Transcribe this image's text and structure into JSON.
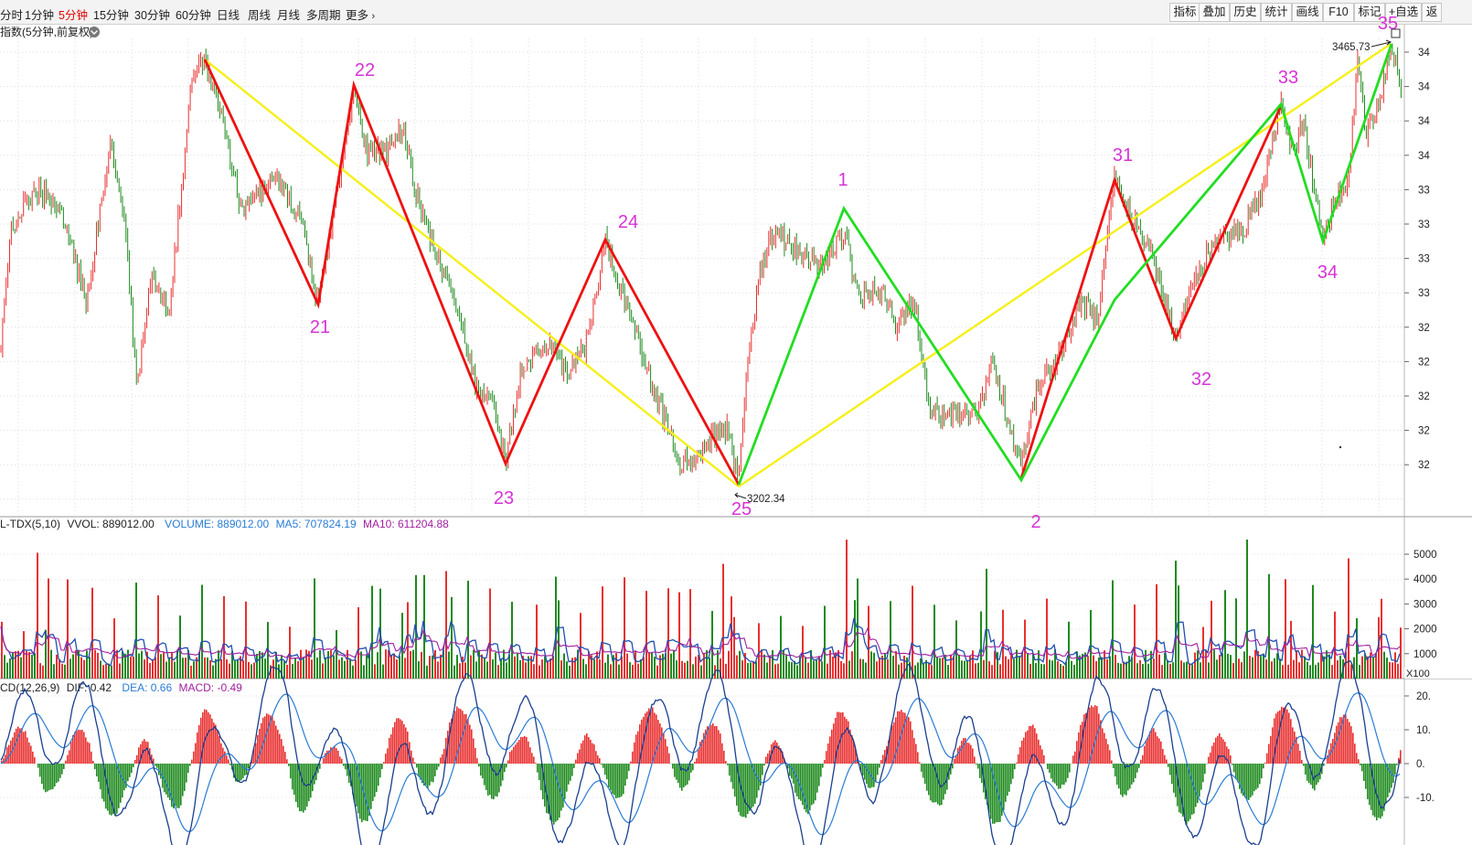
{
  "toolbar": {
    "periods": [
      "分时",
      "1分钟",
      "5分钟",
      "15分钟",
      "30分钟",
      "60分钟",
      "日线",
      "周线",
      "月线",
      "多周期",
      "更多"
    ],
    "active_period": "5分钟",
    "tools": [
      "指标",
      "叠加",
      "历史",
      "统计",
      "画线",
      "F10",
      "标记",
      "+自选",
      "返"
    ]
  },
  "main_panel": {
    "title": "指数(5分钟,前复权)",
    "high_label": "3465.73",
    "low_label": "3202.34",
    "y_ticks": [
      "34",
      "34",
      "34",
      "34",
      "33",
      "33",
      "33",
      "33",
      "32",
      "32",
      "32",
      "32",
      "32"
    ]
  },
  "volume_panel": {
    "title": "L-TDX(5,10)",
    "vvol_label": "VVOL: 889012.00",
    "volume_label": "VOLUME: 889012.00",
    "ma5_label": "MA5: 707824.19",
    "ma10_label": "MA10: 611204.88",
    "y_ticks": [
      "5000",
      "4000",
      "3000",
      "2000",
      "1000"
    ],
    "unit": "X100"
  },
  "macd_panel": {
    "title": "CD(12,26,9)",
    "dif_label": "DIF: 0.42",
    "dea_label": "DEA: 0.66",
    "macd_label": "MACD: -0.49",
    "y_ticks": [
      "20.",
      "10.",
      "0.",
      "-10."
    ]
  },
  "colors": {
    "up": "#e83030",
    "down": "#1e8a1e",
    "red_line": "#ee1111",
    "green_line": "#22dd22",
    "yellow_line": "#f5f01a",
    "annotation": "#d633d6",
    "dif": "#1a3f8f",
    "dea": "#2a7cd4",
    "ma10": "#a020a0"
  },
  "chart_data": {
    "type": "candlestick",
    "title": "指数(5分钟,前复权)",
    "y_high": 3465.73,
    "y_low": 3202.34,
    "wave_labels": [
      {
        "label": "21",
        "x": 350,
        "y": 364
      },
      {
        "label": "22",
        "x": 399,
        "y": 83
      },
      {
        "label": "23",
        "x": 551,
        "y": 551
      },
      {
        "label": "24",
        "x": 687,
        "y": 249
      },
      {
        "label": "25",
        "x": 811,
        "y": 563
      },
      {
        "label": "1",
        "x": 922,
        "y": 203
      },
      {
        "label": "2",
        "x": 1133,
        "y": 577
      },
      {
        "label": "31",
        "x": 1228,
        "y": 176
      },
      {
        "label": "32",
        "x": 1314,
        "y": 421
      },
      {
        "label": "33",
        "x": 1409,
        "y": 91
      },
      {
        "label": "34",
        "x": 1452,
        "y": 304
      },
      {
        "label": "35",
        "x": 1518,
        "y": 32
      }
    ],
    "red_zigzag": [
      [
        224,
        65
      ],
      [
        348,
        333
      ],
      [
        387,
        93
      ],
      [
        553,
        507
      ],
      [
        662,
        262
      ],
      [
        808,
        530
      ]
    ],
    "red_zigzag_2": [
      [
        1117,
        523
      ],
      [
        1219,
        197
      ],
      [
        1286,
        370
      ],
      [
        1401,
        116
      ]
    ],
    "green_zigzag": [
      [
        808,
        530
      ],
      [
        923,
        228
      ],
      [
        1117,
        525
      ],
      [
        1219,
        328
      ],
      [
        1401,
        114
      ],
      [
        1447,
        264
      ],
      [
        1522,
        48
      ]
    ],
    "yellow_lines": [
      [
        [
          224,
          65
        ],
        [
          808,
          532
        ]
      ],
      [
        [
          808,
          532
        ],
        [
          1521,
          48
        ]
      ]
    ]
  }
}
